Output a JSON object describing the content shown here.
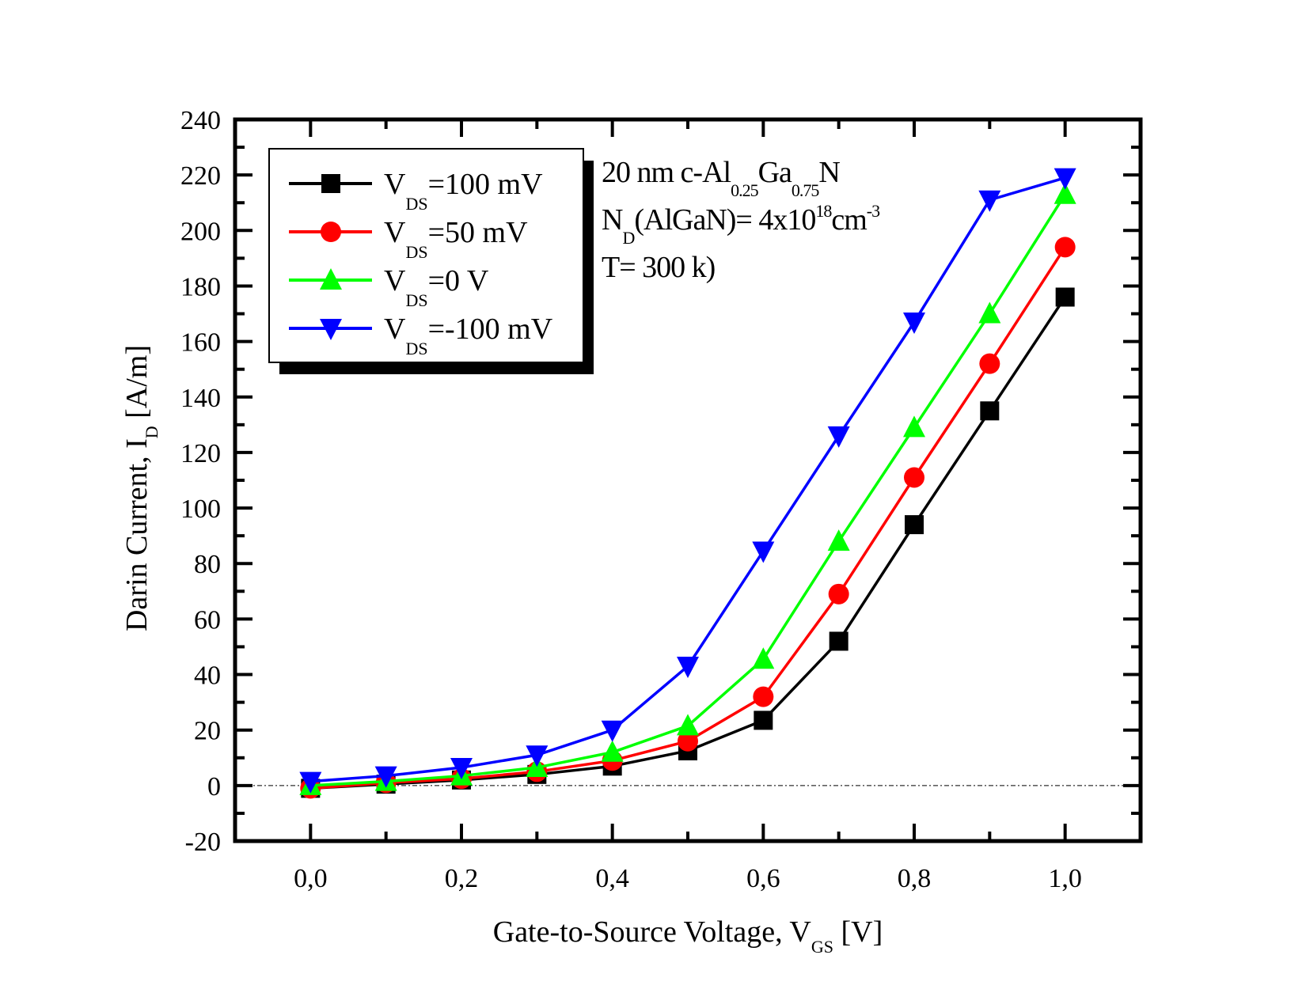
{
  "chart_data": {
    "type": "line",
    "title": "",
    "xlabel": {
      "main": "Gate-to-Source Voltage, V",
      "sub": "GS",
      "tail": " [V]"
    },
    "ylabel": {
      "main": "Darin Current, I",
      "sub": "D",
      "tail": " [A/m]"
    },
    "xlim": [
      -0.1,
      1.1
    ],
    "ylim": [
      -20,
      240
    ],
    "x_ticks": [
      0.0,
      0.2,
      0.4,
      0.6,
      0.8,
      1.0
    ],
    "x_tick_labels": [
      "0,0",
      "0,2",
      "0,4",
      "0,6",
      "0,8",
      "1,0"
    ],
    "x_minor_ticks": [
      0.1,
      0.3,
      0.5,
      0.7,
      0.9
    ],
    "y_ticks": [
      -20,
      0,
      20,
      40,
      60,
      80,
      100,
      120,
      140,
      160,
      180,
      200,
      220,
      240
    ],
    "y_tick_labels": [
      "-20",
      "0",
      "20",
      "40",
      "60",
      "80",
      "100",
      "120",
      "140",
      "160",
      "180",
      "200",
      "220",
      "240"
    ],
    "grid": false,
    "zero_reference_line": true,
    "legend_position": "top-left",
    "x": [
      0.0,
      0.1,
      0.2,
      0.3,
      0.4,
      0.5,
      0.6,
      0.7,
      0.8,
      0.9,
      1.0
    ],
    "series": [
      {
        "name": "V_DS=100 mV",
        "label_main": "V",
        "label_sub": "DS",
        "label_tail": "=100 mV",
        "color": "#000000",
        "marker": "square",
        "values": [
          -1,
          0.5,
          2,
          4,
          7,
          12.5,
          23.5,
          52,
          94,
          135,
          176
        ]
      },
      {
        "name": "V_DS=50 mV",
        "label_main": "V",
        "label_sub": "DS",
        "label_tail": "=50 mV",
        "color": "#ff0000",
        "marker": "circle",
        "values": [
          -1,
          1,
          2.5,
          5,
          9,
          16,
          32,
          69,
          111,
          152,
          194
        ]
      },
      {
        "name": "V_DS=0 V",
        "label_main": "V",
        "label_sub": "DS",
        "label_tail": "=0 V",
        "color": "#00ff00",
        "marker": "triangle-up",
        "values": [
          0,
          1.5,
          3.5,
          6.5,
          12,
          21.5,
          45.5,
          88,
          129,
          170,
          213
        ]
      },
      {
        "name": "V_DS=-100 mV",
        "label_main": "V",
        "label_sub": "DS",
        "label_tail": "=-100 mV",
        "color": "#0000ff",
        "marker": "triangle-down",
        "values": [
          1.5,
          3.5,
          6.5,
          11,
          20,
          43,
          84.5,
          126,
          167,
          211,
          219
        ]
      }
    ],
    "annotations": [
      {
        "parts": [
          [
            "20 nm c-Al",
            ""
          ],
          [
            "0.25",
            "sub"
          ],
          [
            "Ga",
            ""
          ],
          [
            "0.75",
            "sub"
          ],
          [
            "N",
            ""
          ]
        ]
      },
      {
        "parts": [
          [
            "N",
            ""
          ],
          [
            "D",
            "sub"
          ],
          [
            "(AlGaN)= 4x10",
            ""
          ],
          [
            "18",
            "sup"
          ],
          [
            "cm",
            ""
          ],
          [
            "-3",
            "sup"
          ]
        ]
      },
      {
        "parts": [
          [
            "T= 300 k)",
            ""
          ]
        ]
      }
    ]
  }
}
